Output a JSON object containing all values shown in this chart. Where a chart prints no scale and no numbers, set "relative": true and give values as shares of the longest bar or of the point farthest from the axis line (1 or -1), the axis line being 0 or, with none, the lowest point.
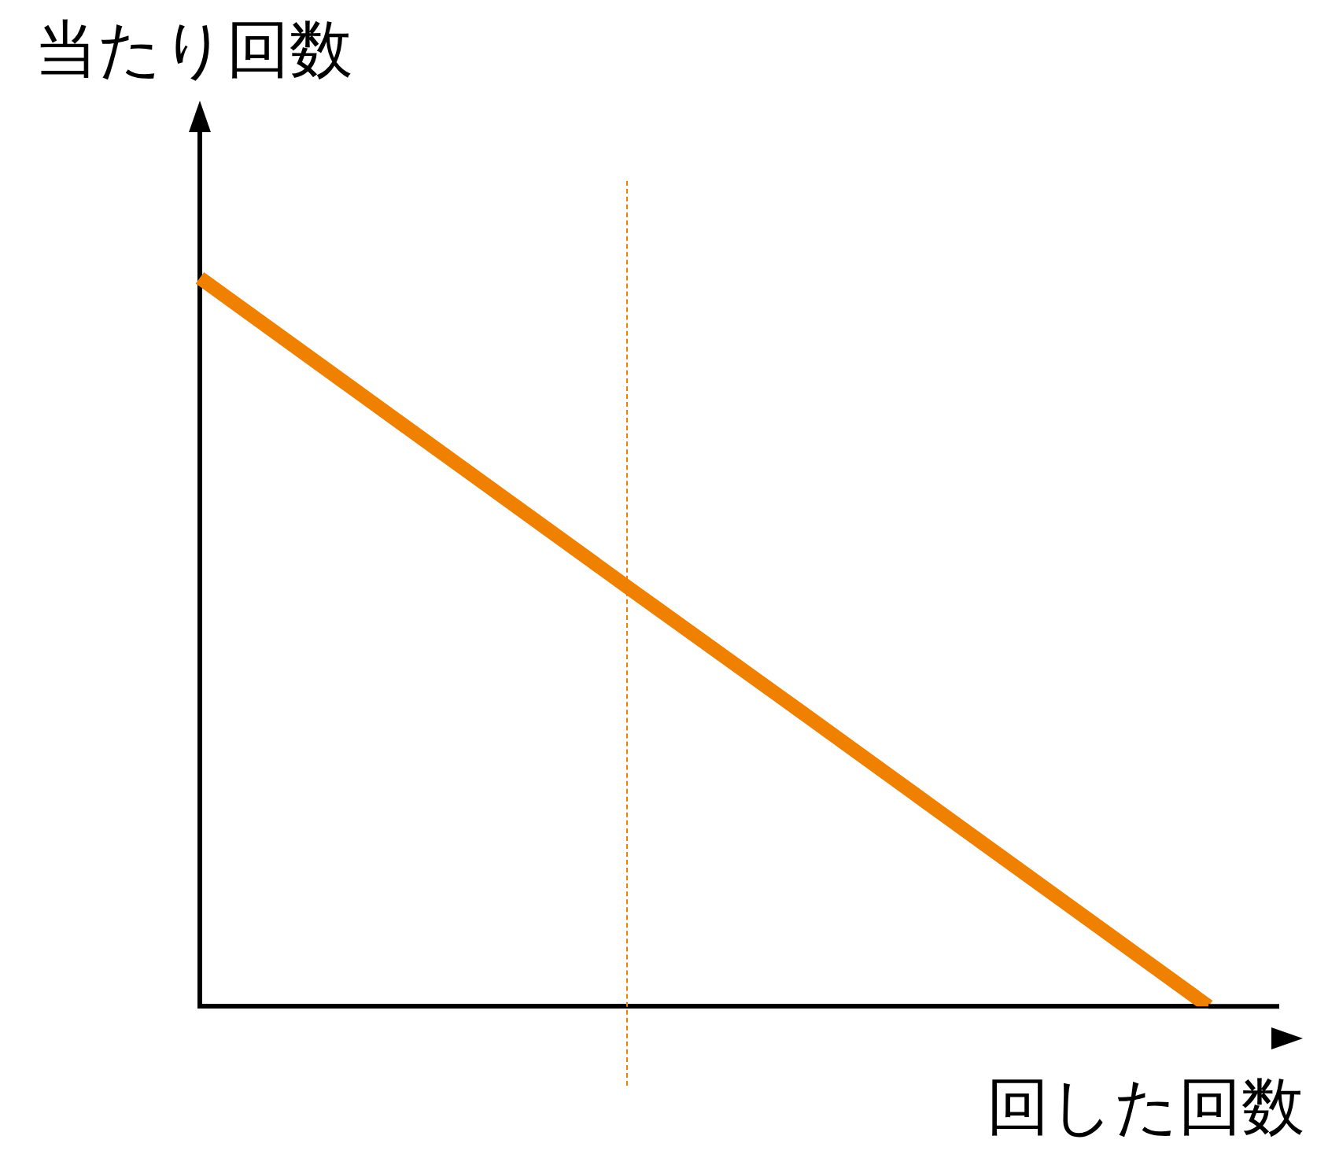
{
  "chart_data": {
    "type": "line",
    "relative": true,
    "xlabel": "回した回数",
    "ylabel": "当たり回数",
    "categories": [
      null,
      null,
      null,
      null,
      null,
      null,
      null,
      null
    ],
    "legend": false,
    "marker": "none",
    "line_style": "solid",
    "series": [
      {
        "color": "#f08000",
        "values": [
          1,
          0.857,
          0.714,
          0.571,
          0.429,
          0.286,
          0.143,
          0
        ]
      }
    ]
  }
}
